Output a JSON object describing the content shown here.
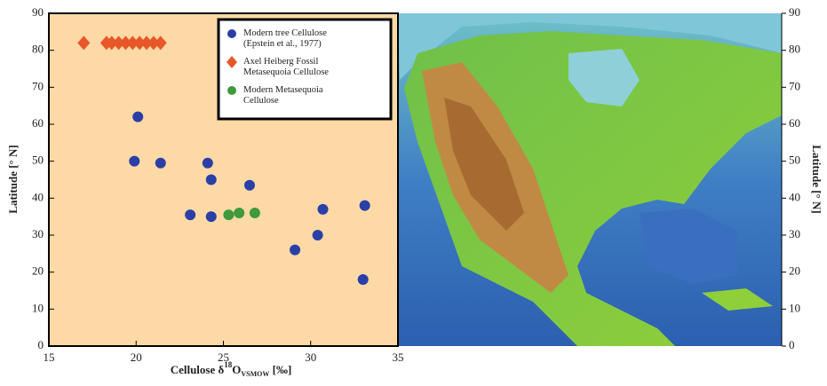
{
  "chart_data": {
    "type": "scatter",
    "x_label": {
      "prefix": "Cellulose δ",
      "sup": "18",
      "main": "O",
      "sub": "VSMOW",
      "suffix": " [‰]"
    },
    "y_label": "Latitude [° N]",
    "y2_label": "Latitude [° N]",
    "xlim": [
      15,
      35
    ],
    "xticks": [
      15,
      20,
      25,
      30,
      35
    ],
    "ylim": [
      0,
      90
    ],
    "yticks": [
      0,
      10,
      20,
      30,
      40,
      50,
      60,
      70,
      80,
      90
    ],
    "y2lim": [
      0,
      90
    ],
    "y2ticks": [
      0,
      10,
      20,
      30,
      40,
      50,
      60,
      70,
      80,
      90
    ],
    "background": "#fdd9a6",
    "series": [
      {
        "name": "Modern tree Cellulose (Epstein et al., 1977)",
        "color": "#2a3fa8",
        "marker": "circle",
        "x": [
          20.1,
          19.9,
          21.4,
          24.1,
          24.3,
          26.5,
          23.1,
          24.3,
          30.7,
          33.1,
          30.4,
          29.1,
          33.0
        ],
        "y": [
          62,
          50,
          49.5,
          49.5,
          45,
          43.5,
          35.5,
          35,
          37,
          38,
          30,
          26,
          18
        ]
      },
      {
        "name": "Axel Heiberg Fossil Metasequoia Cellulose",
        "color": "#e8572a",
        "marker": "diamond",
        "x": [
          17.0,
          18.3,
          18.6,
          19.0,
          19.4,
          19.8,
          20.2,
          20.6,
          21.0,
          21.4
        ],
        "y": [
          82,
          82,
          82,
          82,
          82,
          82,
          82,
          82,
          82,
          82
        ]
      },
      {
        "name": "Modern Metasequoia Cellulose",
        "color": "#3e9a3a",
        "marker": "circle",
        "x": [
          25.3,
          25.9,
          26.8
        ],
        "y": [
          35.5,
          36,
          36
        ]
      }
    ]
  }
}
